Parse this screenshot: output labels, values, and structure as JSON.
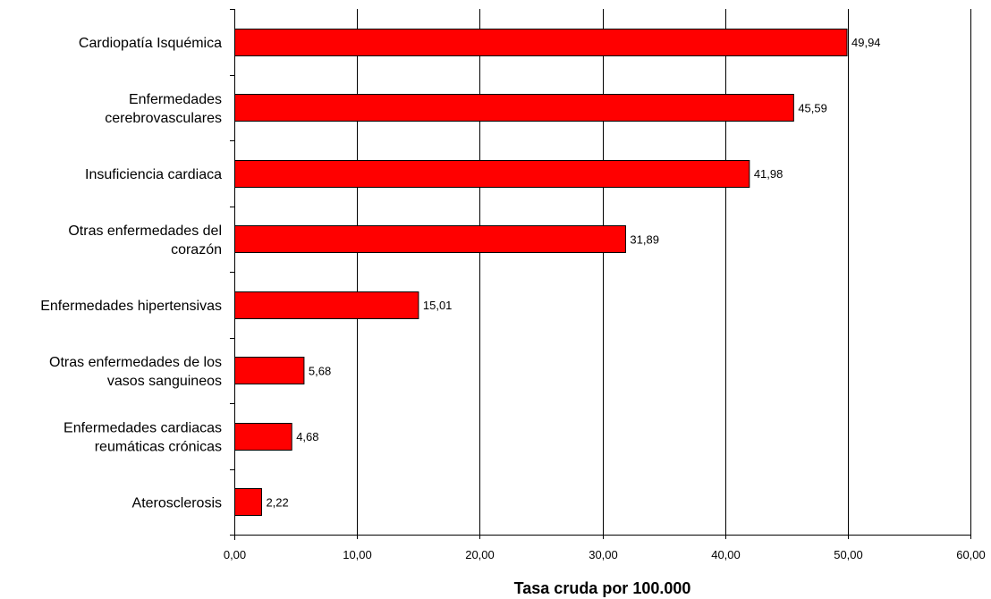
{
  "chart_data": {
    "type": "bar",
    "orientation": "horizontal",
    "categories": [
      "Cardiopatía Isquémica",
      "Enfermedades cerebrovasculares",
      "Insuficiencia cardiaca",
      "Otras enfermedades del corazón",
      "Enfermedades hipertensivas",
      "Otras enfermedades de los vasos sanguineos",
      "Enfermedades cardiacas reumáticas crónicas",
      "Aterosclerosis"
    ],
    "category_lines": [
      [
        "Cardiopatía Isquémica"
      ],
      [
        "Enfermedades",
        "cerebrovasculares"
      ],
      [
        "Insuficiencia cardiaca"
      ],
      [
        "Otras enfermedades del",
        "corazón"
      ],
      [
        "Enfermedades hipertensivas"
      ],
      [
        "Otras enfermedades de los",
        "vasos sanguineos"
      ],
      [
        "Enfermedades cardiacas",
        "reumáticas crónicas"
      ],
      [
        "Aterosclerosis"
      ]
    ],
    "values": [
      49.94,
      45.59,
      41.98,
      31.89,
      15.01,
      5.68,
      4.68,
      2.22
    ],
    "data_labels": [
      "49,94",
      "45,59",
      "41,98",
      "31,89",
      "15,01",
      "5,68",
      "4,68",
      "2,22"
    ],
    "xlabel": "Tasa cruda por 100.000",
    "xlim": [
      0,
      60
    ],
    "x_ticks": [
      0,
      10,
      20,
      30,
      40,
      50,
      60
    ],
    "x_tick_labels": [
      "0,00",
      "10,00",
      "20,00",
      "30,00",
      "40,00",
      "50,00",
      "60,00"
    ],
    "grid": true,
    "bar_color": "#ff0000",
    "bar_edge_color": "#000000"
  }
}
